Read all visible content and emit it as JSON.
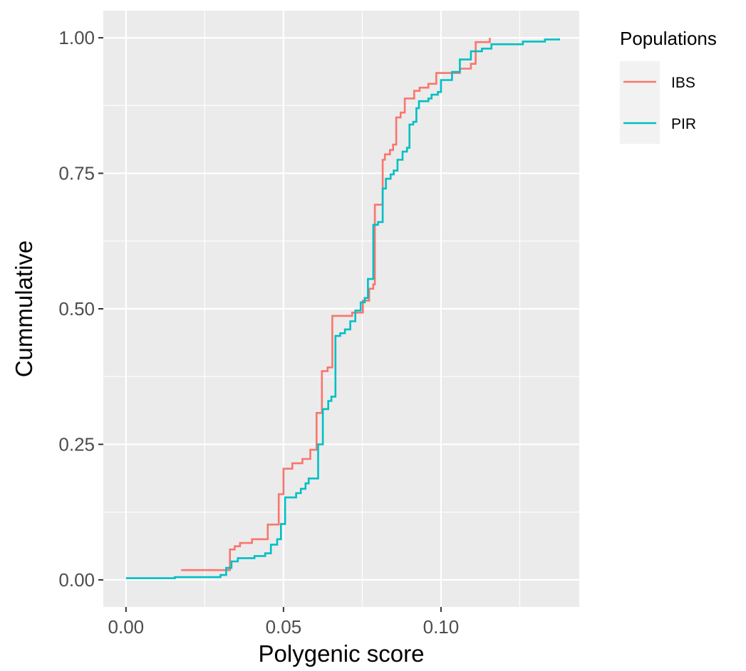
{
  "chart_data": {
    "type": "line",
    "xlabel": "Polygenic score",
    "ylabel": "Cummulative",
    "xlim": [
      -0.0072,
      0.1439
    ],
    "ylim": [
      -0.05,
      1.05
    ],
    "x_ticks": [
      0.0,
      0.05,
      0.1
    ],
    "x_tick_labels": [
      "0.00",
      "0.05",
      "0.10"
    ],
    "y_ticks": [
      0.0,
      0.25,
      0.5,
      0.75,
      1.0
    ],
    "y_tick_labels": [
      "0.00",
      "0.25",
      "0.50",
      "0.75",
      "1.00"
    ],
    "grid": true,
    "legend": {
      "title": "Populations",
      "position": "right"
    },
    "series": [
      {
        "name": "IBS",
        "color": "#F8766D",
        "points": [
          [
            0.0175,
            0.018
          ],
          [
            0.033,
            0.018
          ],
          [
            0.033,
            0.056
          ],
          [
            0.0345,
            0.056
          ],
          [
            0.0345,
            0.062
          ],
          [
            0.0362,
            0.062
          ],
          [
            0.0362,
            0.068
          ],
          [
            0.04,
            0.068
          ],
          [
            0.04,
            0.075
          ],
          [
            0.045,
            0.075
          ],
          [
            0.045,
            0.102
          ],
          [
            0.0485,
            0.102
          ],
          [
            0.0485,
            0.158
          ],
          [
            0.05,
            0.158
          ],
          [
            0.05,
            0.205
          ],
          [
            0.0528,
            0.205
          ],
          [
            0.0528,
            0.215
          ],
          [
            0.056,
            0.215
          ],
          [
            0.056,
            0.223
          ],
          [
            0.0585,
            0.223
          ],
          [
            0.0585,
            0.24
          ],
          [
            0.0605,
            0.24
          ],
          [
            0.0605,
            0.308
          ],
          [
            0.0622,
            0.308
          ],
          [
            0.0622,
            0.385
          ],
          [
            0.064,
            0.385
          ],
          [
            0.064,
            0.392
          ],
          [
            0.0655,
            0.392
          ],
          [
            0.0655,
            0.487
          ],
          [
            0.0718,
            0.487
          ],
          [
            0.0718,
            0.493
          ],
          [
            0.0752,
            0.493
          ],
          [
            0.0752,
            0.515
          ],
          [
            0.0772,
            0.515
          ],
          [
            0.0772,
            0.537
          ],
          [
            0.0785,
            0.537
          ],
          [
            0.0785,
            0.545
          ],
          [
            0.079,
            0.545
          ],
          [
            0.079,
            0.692
          ],
          [
            0.0815,
            0.692
          ],
          [
            0.0815,
            0.775
          ],
          [
            0.0822,
            0.775
          ],
          [
            0.0822,
            0.785
          ],
          [
            0.0838,
            0.785
          ],
          [
            0.0838,
            0.793
          ],
          [
            0.0848,
            0.793
          ],
          [
            0.0848,
            0.803
          ],
          [
            0.0858,
            0.803
          ],
          [
            0.0858,
            0.853
          ],
          [
            0.0872,
            0.853
          ],
          [
            0.0872,
            0.862
          ],
          [
            0.0885,
            0.862
          ],
          [
            0.0885,
            0.888
          ],
          [
            0.0915,
            0.888
          ],
          [
            0.0915,
            0.902
          ],
          [
            0.0932,
            0.902
          ],
          [
            0.0932,
            0.908
          ],
          [
            0.096,
            0.908
          ],
          [
            0.096,
            0.915
          ],
          [
            0.0985,
            0.915
          ],
          [
            0.0985,
            0.935
          ],
          [
            0.106,
            0.935
          ],
          [
            0.106,
            0.943
          ],
          [
            0.1095,
            0.943
          ],
          [
            0.1095,
            0.952
          ],
          [
            0.111,
            0.952
          ],
          [
            0.111,
            0.992
          ],
          [
            0.1155,
            0.992
          ],
          [
            0.1155,
            1.0
          ]
        ]
      },
      {
        "name": "PIR",
        "color": "#00BFC4",
        "points": [
          [
            0.0,
            0.003
          ],
          [
            0.0155,
            0.003
          ],
          [
            0.0155,
            0.005
          ],
          [
            0.03,
            0.005
          ],
          [
            0.03,
            0.009
          ],
          [
            0.0318,
            0.009
          ],
          [
            0.0318,
            0.022
          ],
          [
            0.0335,
            0.022
          ],
          [
            0.0335,
            0.034
          ],
          [
            0.0355,
            0.034
          ],
          [
            0.0355,
            0.04
          ],
          [
            0.0408,
            0.04
          ],
          [
            0.0408,
            0.044
          ],
          [
            0.0442,
            0.044
          ],
          [
            0.0442,
            0.049
          ],
          [
            0.046,
            0.049
          ],
          [
            0.046,
            0.065
          ],
          [
            0.048,
            0.065
          ],
          [
            0.048,
            0.075
          ],
          [
            0.0492,
            0.075
          ],
          [
            0.0492,
            0.103
          ],
          [
            0.0505,
            0.103
          ],
          [
            0.0505,
            0.152
          ],
          [
            0.054,
            0.152
          ],
          [
            0.054,
            0.16
          ],
          [
            0.0555,
            0.16
          ],
          [
            0.0555,
            0.168
          ],
          [
            0.057,
            0.168
          ],
          [
            0.057,
            0.178
          ],
          [
            0.058,
            0.178
          ],
          [
            0.058,
            0.187
          ],
          [
            0.061,
            0.187
          ],
          [
            0.061,
            0.25
          ],
          [
            0.0625,
            0.25
          ],
          [
            0.0625,
            0.315
          ],
          [
            0.0642,
            0.315
          ],
          [
            0.0642,
            0.33
          ],
          [
            0.0652,
            0.33
          ],
          [
            0.0652,
            0.338
          ],
          [
            0.0665,
            0.338
          ],
          [
            0.0665,
            0.45
          ],
          [
            0.068,
            0.45
          ],
          [
            0.068,
            0.455
          ],
          [
            0.0695,
            0.455
          ],
          [
            0.0695,
            0.462
          ],
          [
            0.0712,
            0.462
          ],
          [
            0.0712,
            0.477
          ],
          [
            0.0728,
            0.477
          ],
          [
            0.0728,
            0.497
          ],
          [
            0.0745,
            0.497
          ],
          [
            0.0745,
            0.512
          ],
          [
            0.0758,
            0.512
          ],
          [
            0.0758,
            0.52
          ],
          [
            0.0768,
            0.52
          ],
          [
            0.0768,
            0.555
          ],
          [
            0.0785,
            0.555
          ],
          [
            0.0785,
            0.655
          ],
          [
            0.08,
            0.655
          ],
          [
            0.08,
            0.66
          ],
          [
            0.0815,
            0.66
          ],
          [
            0.0815,
            0.722
          ],
          [
            0.0825,
            0.722
          ],
          [
            0.0825,
            0.74
          ],
          [
            0.084,
            0.74
          ],
          [
            0.084,
            0.748
          ],
          [
            0.085,
            0.748
          ],
          [
            0.085,
            0.755
          ],
          [
            0.0862,
            0.755
          ],
          [
            0.0862,
            0.775
          ],
          [
            0.0878,
            0.775
          ],
          [
            0.0878,
            0.79
          ],
          [
            0.0892,
            0.79
          ],
          [
            0.0892,
            0.797
          ],
          [
            0.09,
            0.797
          ],
          [
            0.09,
            0.84
          ],
          [
            0.0912,
            0.84
          ],
          [
            0.0912,
            0.845
          ],
          [
            0.0922,
            0.845
          ],
          [
            0.0922,
            0.87
          ],
          [
            0.093,
            0.87
          ],
          [
            0.093,
            0.883
          ],
          [
            0.096,
            0.883
          ],
          [
            0.096,
            0.888
          ],
          [
            0.097,
            0.888
          ],
          [
            0.097,
            0.895
          ],
          [
            0.099,
            0.895
          ],
          [
            0.099,
            0.9
          ],
          [
            0.1,
            0.9
          ],
          [
            0.1,
            0.922
          ],
          [
            0.1035,
            0.922
          ],
          [
            0.1035,
            0.937
          ],
          [
            0.106,
            0.937
          ],
          [
            0.106,
            0.96
          ],
          [
            0.1095,
            0.96
          ],
          [
            0.1095,
            0.975
          ],
          [
            0.113,
            0.975
          ],
          [
            0.113,
            0.98
          ],
          [
            0.116,
            0.98
          ],
          [
            0.116,
            0.988
          ],
          [
            0.126,
            0.988
          ],
          [
            0.126,
            0.993
          ],
          [
            0.133,
            0.993
          ],
          [
            0.133,
            0.997
          ],
          [
            0.1375,
            0.997
          ],
          [
            0.1375,
            0.999
          ]
        ]
      }
    ]
  }
}
